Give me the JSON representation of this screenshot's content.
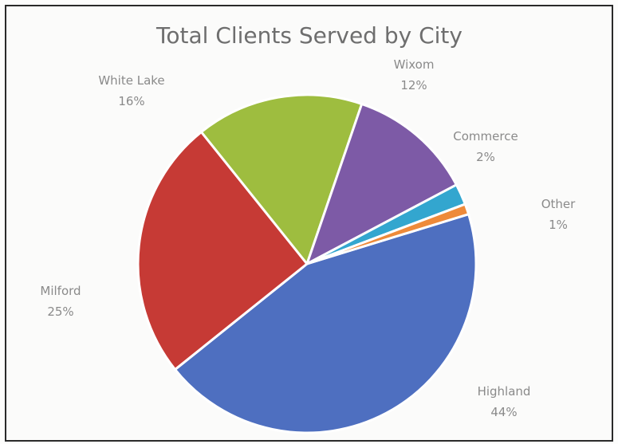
{
  "chart_data": {
    "type": "pie",
    "title": "Total Clients Served by City",
    "slices": [
      {
        "label": "Highland",
        "percent_label": "44%",
        "value": 44,
        "color": "#4e6fc0"
      },
      {
        "label": "Milford",
        "percent_label": "25%",
        "value": 25,
        "color": "#c63a35"
      },
      {
        "label": "White Lake",
        "percent_label": "16%",
        "value": 16,
        "color": "#9ebd3f"
      },
      {
        "label": "Wixom",
        "percent_label": "12%",
        "value": 12,
        "color": "#7d5aa6"
      },
      {
        "label": "Commerce",
        "percent_label": "2%",
        "value": 2,
        "color": "#33a6cf"
      },
      {
        "label": "Other",
        "percent_label": "1%",
        "value": 1,
        "color": "#ee8a3a"
      }
    ],
    "legend": "none",
    "data_labels": "outside"
  }
}
